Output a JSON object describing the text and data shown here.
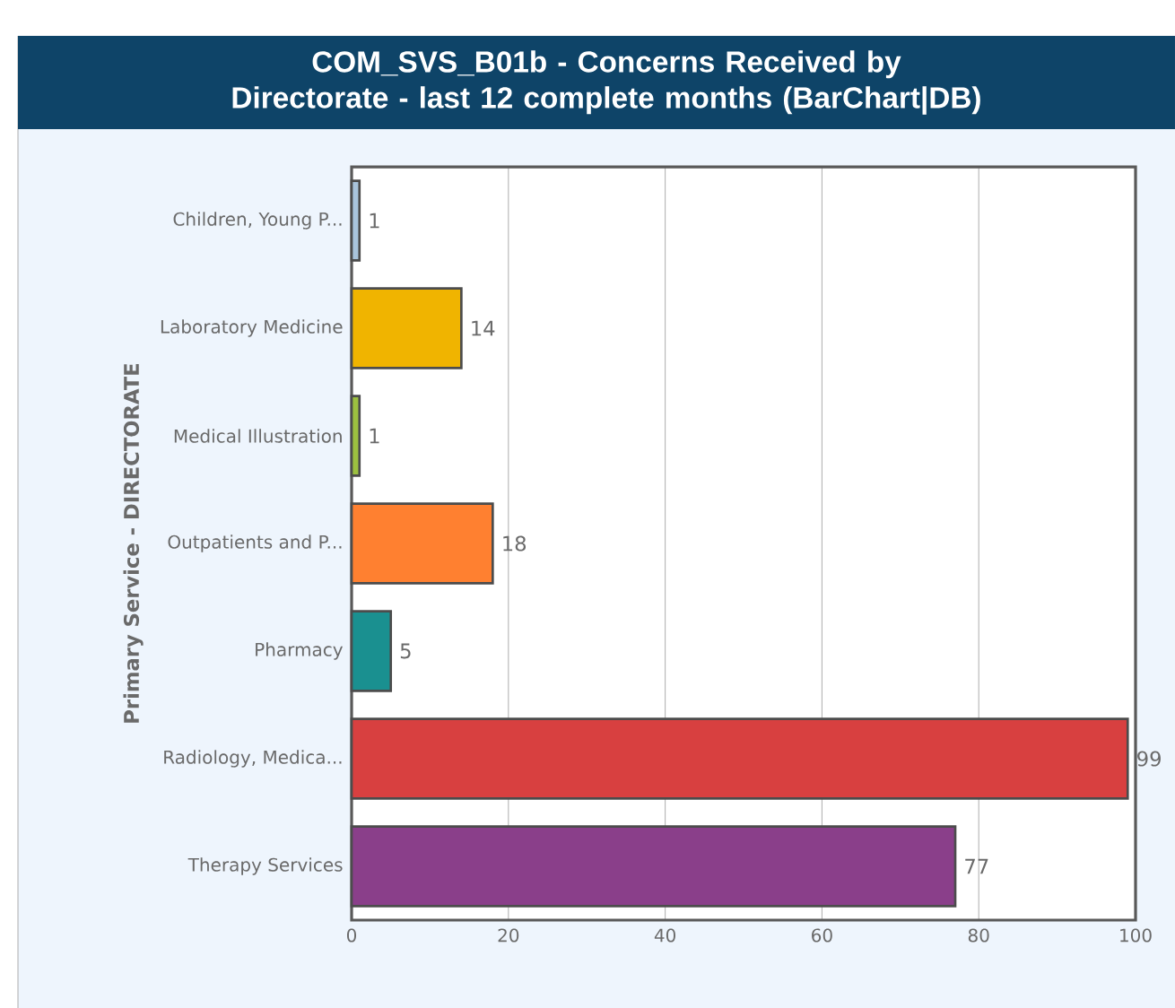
{
  "chart_data": {
    "type": "bar",
    "orientation": "horizontal",
    "title": "COM_SVS_B01b - Concerns Received by Directorate - last 12 complete months (BarChart|DB)",
    "ylabel": "Primary Service - DIRECTORATE",
    "categories": [
      "Children, Young P...",
      "Laboratory Medicine",
      "Medical Illustration",
      "Outpatients and P...",
      "Pharmacy",
      "Radiology, Medica...",
      "Therapy Services"
    ],
    "values": [
      1,
      14,
      1,
      18,
      5,
      99,
      77
    ],
    "colors": [
      "#a9c4dc",
      "#f0b400",
      "#9cc040",
      "#ff8030",
      "#1a9090",
      "#d84040",
      "#8a3f8a"
    ],
    "xlim": [
      0,
      100
    ],
    "xticks": [
      0,
      20,
      40,
      60,
      80,
      100
    ],
    "grid": "x",
    "data_labels": true
  }
}
